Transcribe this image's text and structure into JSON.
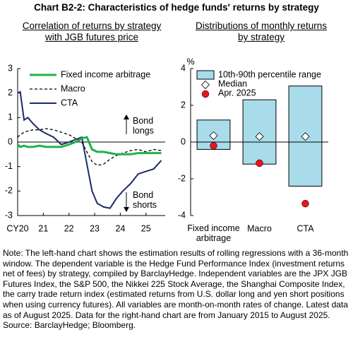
{
  "title": "Chart B2-2: Characteristics of hedge funds' returns by strategy",
  "note": "Note: The left-hand chart shows the estimation results of rolling regressions with a 36-month window. The dependent variable is the Hedge Fund Performance Index (investment returns net of fees) by strategy, compiled by BarclayHedge. Independent variables are the JPX JGB Futures Index, the S&P 500, the Nikkei 225 Stock Average, the Shanghai Composite Index, the carry trade return index (estimated returns from U.S. dollar long and yen short positions when using currency futures). All variables are month-on-month rates of change. Latest data as of August 2025. Data for the right-hand chart are from January 2015 to August 2025.",
  "source": "Source: BarclayHedge; Bloomberg.",
  "chart_data": [
    {
      "type": "line",
      "subtitle": "Correlation of returns by strategy\nwith JGB futures price",
      "x": [
        2020.0,
        2020.1,
        2020.25,
        2020.4,
        2020.6,
        2020.85,
        2021.1,
        2021.4,
        2021.7,
        2022.0,
        2022.25,
        2022.5,
        2022.7,
        2022.9,
        2023.1,
        2023.35,
        2023.6,
        2023.85,
        2024.1,
        2024.4,
        2024.7,
        2025.0,
        2025.3,
        2025.6
      ],
      "xlim": [
        2020,
        2025.75
      ],
      "xticks": [
        {
          "value": 2020,
          "label": "CY20"
        },
        {
          "value": 2021,
          "label": "21"
        },
        {
          "value": 2022,
          "label": "22"
        },
        {
          "value": 2023,
          "label": "23"
        },
        {
          "value": 2024,
          "label": "24"
        },
        {
          "value": 2025,
          "label": "25"
        }
      ],
      "ylim": [
        -3,
        3
      ],
      "yticks": [
        -3,
        -2,
        -1,
        0,
        1,
        2,
        3
      ],
      "grid": false,
      "series": [
        {
          "name": "Fixed income arbitrage",
          "color": "#1fb24a",
          "line_style": "solid",
          "width": 3,
          "values": [
            -0.1,
            -0.2,
            -0.15,
            -0.2,
            -0.2,
            -0.15,
            -0.2,
            -0.2,
            -0.2,
            -0.1,
            0.0,
            0.15,
            0.2,
            -0.3,
            -0.4,
            -0.4,
            -0.45,
            -0.5,
            -0.5,
            -0.5,
            -0.45,
            -0.45,
            -0.45,
            -0.45
          ]
        },
        {
          "name": "Macro",
          "color": "#000000",
          "line_style": "dashed",
          "width": 1.3,
          "values": [
            0.2,
            0.3,
            0.4,
            0.45,
            0.5,
            0.5,
            0.55,
            0.5,
            0.4,
            0.3,
            0.15,
            0.0,
            -0.4,
            -0.8,
            -0.95,
            -0.9,
            -0.7,
            -0.55,
            -0.45,
            -0.35,
            -0.3,
            -0.4,
            -0.3,
            -0.35
          ]
        },
        {
          "name": "CTA",
          "color": "#1b2a6b",
          "line_style": "solid",
          "width": 2,
          "values": [
            2.0,
            2.05,
            0.9,
            1.0,
            0.75,
            0.5,
            0.35,
            0.2,
            -0.1,
            0.0,
            0.1,
            0.2,
            -0.9,
            -2.0,
            -2.5,
            -2.65,
            -2.7,
            -2.3,
            -2.0,
            -1.7,
            -1.3,
            -1.2,
            -1.1,
            -0.75
          ]
        }
      ],
      "annotations": [
        "Bond\nlongs",
        "Bond\nshorts"
      ]
    },
    {
      "type": "floating_bar",
      "subtitle": "Distributions of monthly returns\nby strategy",
      "y_label": "%",
      "categories": [
        "Fixed income\narbitrage",
        "Macro",
        "CTA"
      ],
      "ylim": [
        -4,
        4
      ],
      "yticks": [
        -4,
        -2,
        0,
        2,
        4
      ],
      "grid": false,
      "series": [
        {
          "name": "10th-90th percentile range",
          "color": "#a9dcea",
          "low": [
            -0.4,
            -1.2,
            -2.4
          ],
          "high": [
            1.2,
            2.3,
            3.05
          ]
        },
        {
          "name": "Median",
          "marker": "diamond",
          "color": "#ffffff",
          "values": [
            0.35,
            0.3,
            0.3
          ]
        },
        {
          "name": "Apr. 2025",
          "marker": "circle",
          "color": "#e8141c",
          "values": [
            -0.2,
            -1.15,
            -3.35
          ]
        }
      ]
    }
  ]
}
